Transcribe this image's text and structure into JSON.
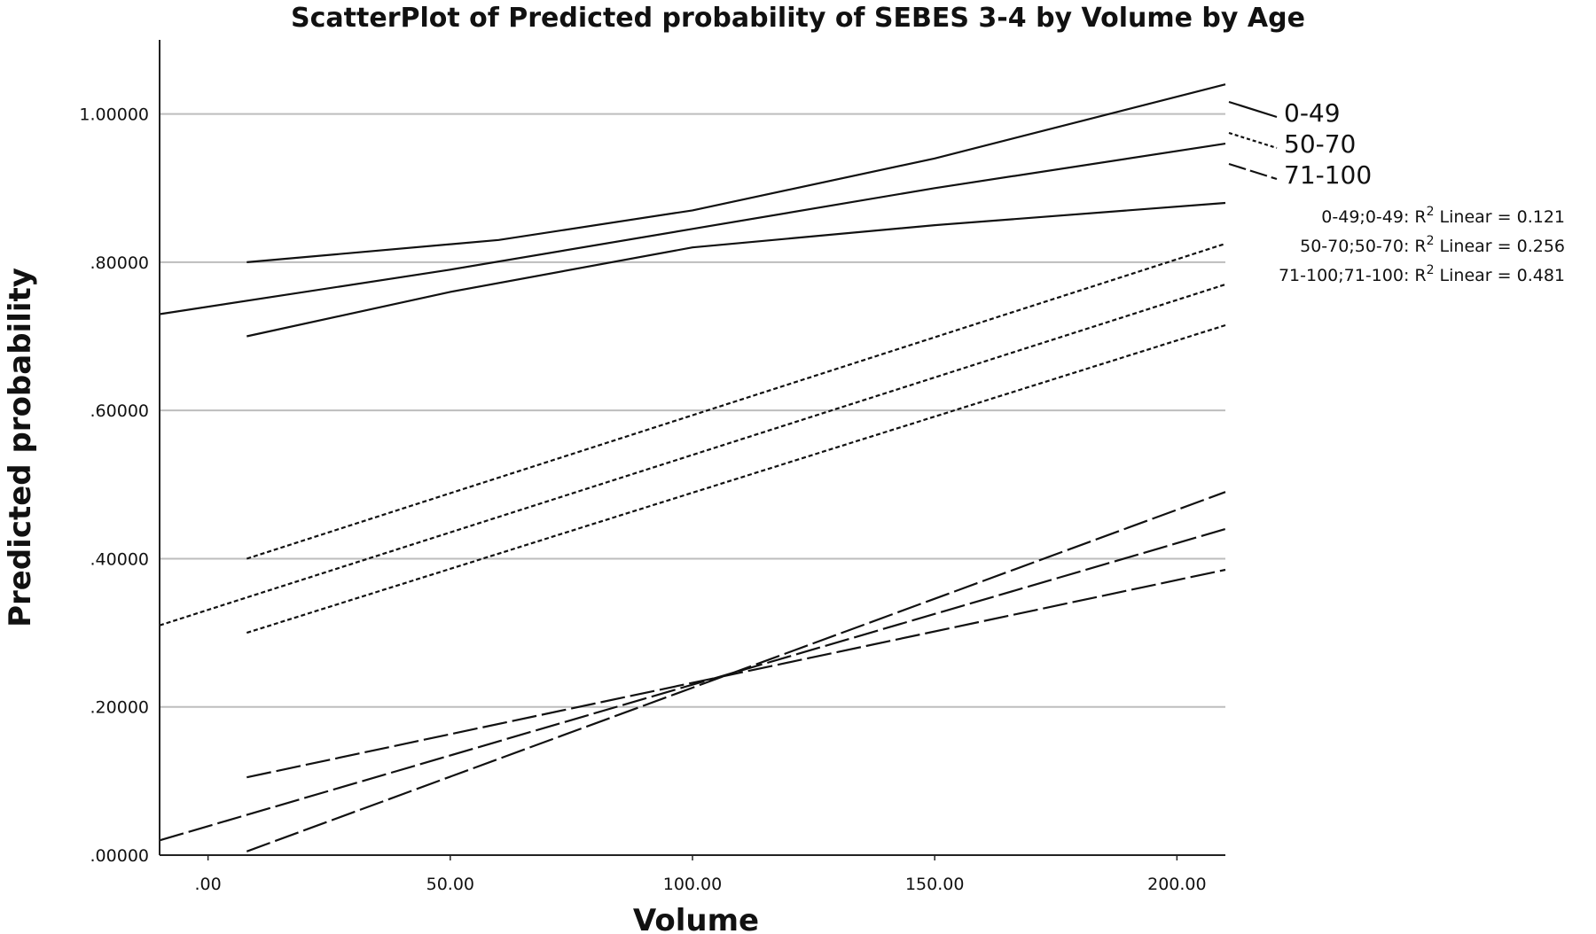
{
  "chart_data": {
    "type": "line",
    "title": "ScatterPlot of Predicted probability of SEBES 3-4 by Volume by Age",
    "xlabel": "Volume",
    "ylabel": "Predicted probability",
    "xlim": [
      -10,
      210
    ],
    "ylim": [
      0,
      1.1
    ],
    "x_ticks": [
      0,
      50,
      100,
      150,
      200
    ],
    "x_tick_labels": [
      ".00",
      "50.00",
      "100.00",
      "150.00",
      "200.00"
    ],
    "y_ticks": [
      0,
      0.2,
      0.4,
      0.6,
      0.8,
      1.0
    ],
    "y_tick_labels": [
      ".00000",
      ".20000",
      ".40000",
      ".60000",
      ".80000",
      "1.00000"
    ],
    "grid": "horizontal",
    "legend_position": "right",
    "legend": [
      {
        "label": "0-49",
        "style": "solid"
      },
      {
        "label": "50-70",
        "style": "dotted"
      },
      {
        "label": "71-100",
        "style": "dashed"
      }
    ],
    "r2_annotations": [
      {
        "prefix": "0-49;0-49: R",
        "suffix": " Linear = 0.121"
      },
      {
        "prefix": "50-70;50-70: R",
        "suffix": " Linear = 0.256"
      },
      {
        "prefix": "71-100;71-100: R",
        "suffix": " Linear = 0.481"
      }
    ],
    "superscript": "2",
    "series": [
      {
        "group": "0-49",
        "style": "solid",
        "x": [
          8,
          60,
          100,
          150,
          210
        ],
        "y": [
          0.8,
          0.83,
          0.87,
          0.94,
          1.04
        ]
      },
      {
        "group": "0-49",
        "style": "solid",
        "x": [
          -10,
          50,
          100,
          150,
          210
        ],
        "y": [
          0.73,
          0.79,
          0.845,
          0.9,
          0.96
        ]
      },
      {
        "group": "0-49",
        "style": "solid",
        "x": [
          8,
          50,
          100,
          150,
          210
        ],
        "y": [
          0.7,
          0.76,
          0.82,
          0.85,
          0.88
        ]
      },
      {
        "group": "50-70",
        "style": "dotted",
        "x": [
          8,
          210
        ],
        "y": [
          0.4,
          0.825
        ]
      },
      {
        "group": "50-70",
        "style": "dotted",
        "x": [
          -10,
          210
        ],
        "y": [
          0.31,
          0.77
        ]
      },
      {
        "group": "50-70",
        "style": "dotted",
        "x": [
          8,
          210
        ],
        "y": [
          0.3,
          0.715
        ]
      },
      {
        "group": "71-100",
        "style": "dashed",
        "x": [
          8,
          210
        ],
        "y": [
          0.105,
          0.385
        ]
      },
      {
        "group": "71-100",
        "style": "dashed",
        "x": [
          -10,
          210
        ],
        "y": [
          0.02,
          0.44
        ]
      },
      {
        "group": "71-100",
        "style": "dashed",
        "x": [
          8,
          210
        ],
        "y": [
          0.005,
          0.49
        ]
      }
    ]
  }
}
